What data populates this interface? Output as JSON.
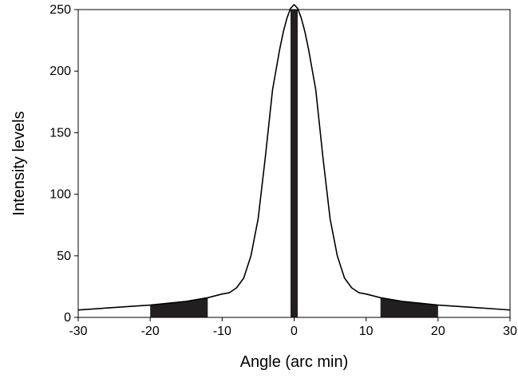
{
  "chart_data": {
    "type": "line",
    "title": "",
    "xlabel": "Angle (arc min)",
    "ylabel": "Intensity levels",
    "xlim": [
      -30,
      30
    ],
    "ylim": [
      0,
      250
    ],
    "xticks": [
      -30,
      -20,
      -10,
      0,
      10,
      20,
      30
    ],
    "yticks": [
      0,
      50,
      100,
      150,
      200,
      250
    ],
    "grid": false,
    "legend": "none",
    "colors": {
      "line": "#000000",
      "fill": "#231f20",
      "background": "#ffffff"
    },
    "series": [
      {
        "x": [
          -30,
          -25,
          -20,
          -15,
          -12,
          -10,
          -9,
          -8,
          -7,
          -6,
          -5,
          -4,
          -3,
          -2,
          -1.5,
          -1,
          -0.5,
          0,
          0.5,
          1,
          1.5,
          2,
          3,
          4,
          5,
          6,
          7,
          8,
          9,
          10,
          12,
          15,
          20,
          25,
          30
        ],
        "y": [
          6,
          8,
          10,
          13,
          16,
          19,
          20,
          24,
          32,
          50,
          80,
          130,
          185,
          218,
          232,
          243,
          251,
          254,
          251,
          243,
          232,
          218,
          185,
          130,
          80,
          50,
          32,
          24,
          20,
          19,
          16,
          13,
          10,
          8,
          6
        ]
      }
    ],
    "shaded_regions": [
      {
        "x": [
          -20,
          -12
        ]
      },
      {
        "x": [
          12,
          20
        ]
      }
    ],
    "central_bar": {
      "x": [
        -0.5,
        0.5
      ],
      "y": 250
    }
  }
}
